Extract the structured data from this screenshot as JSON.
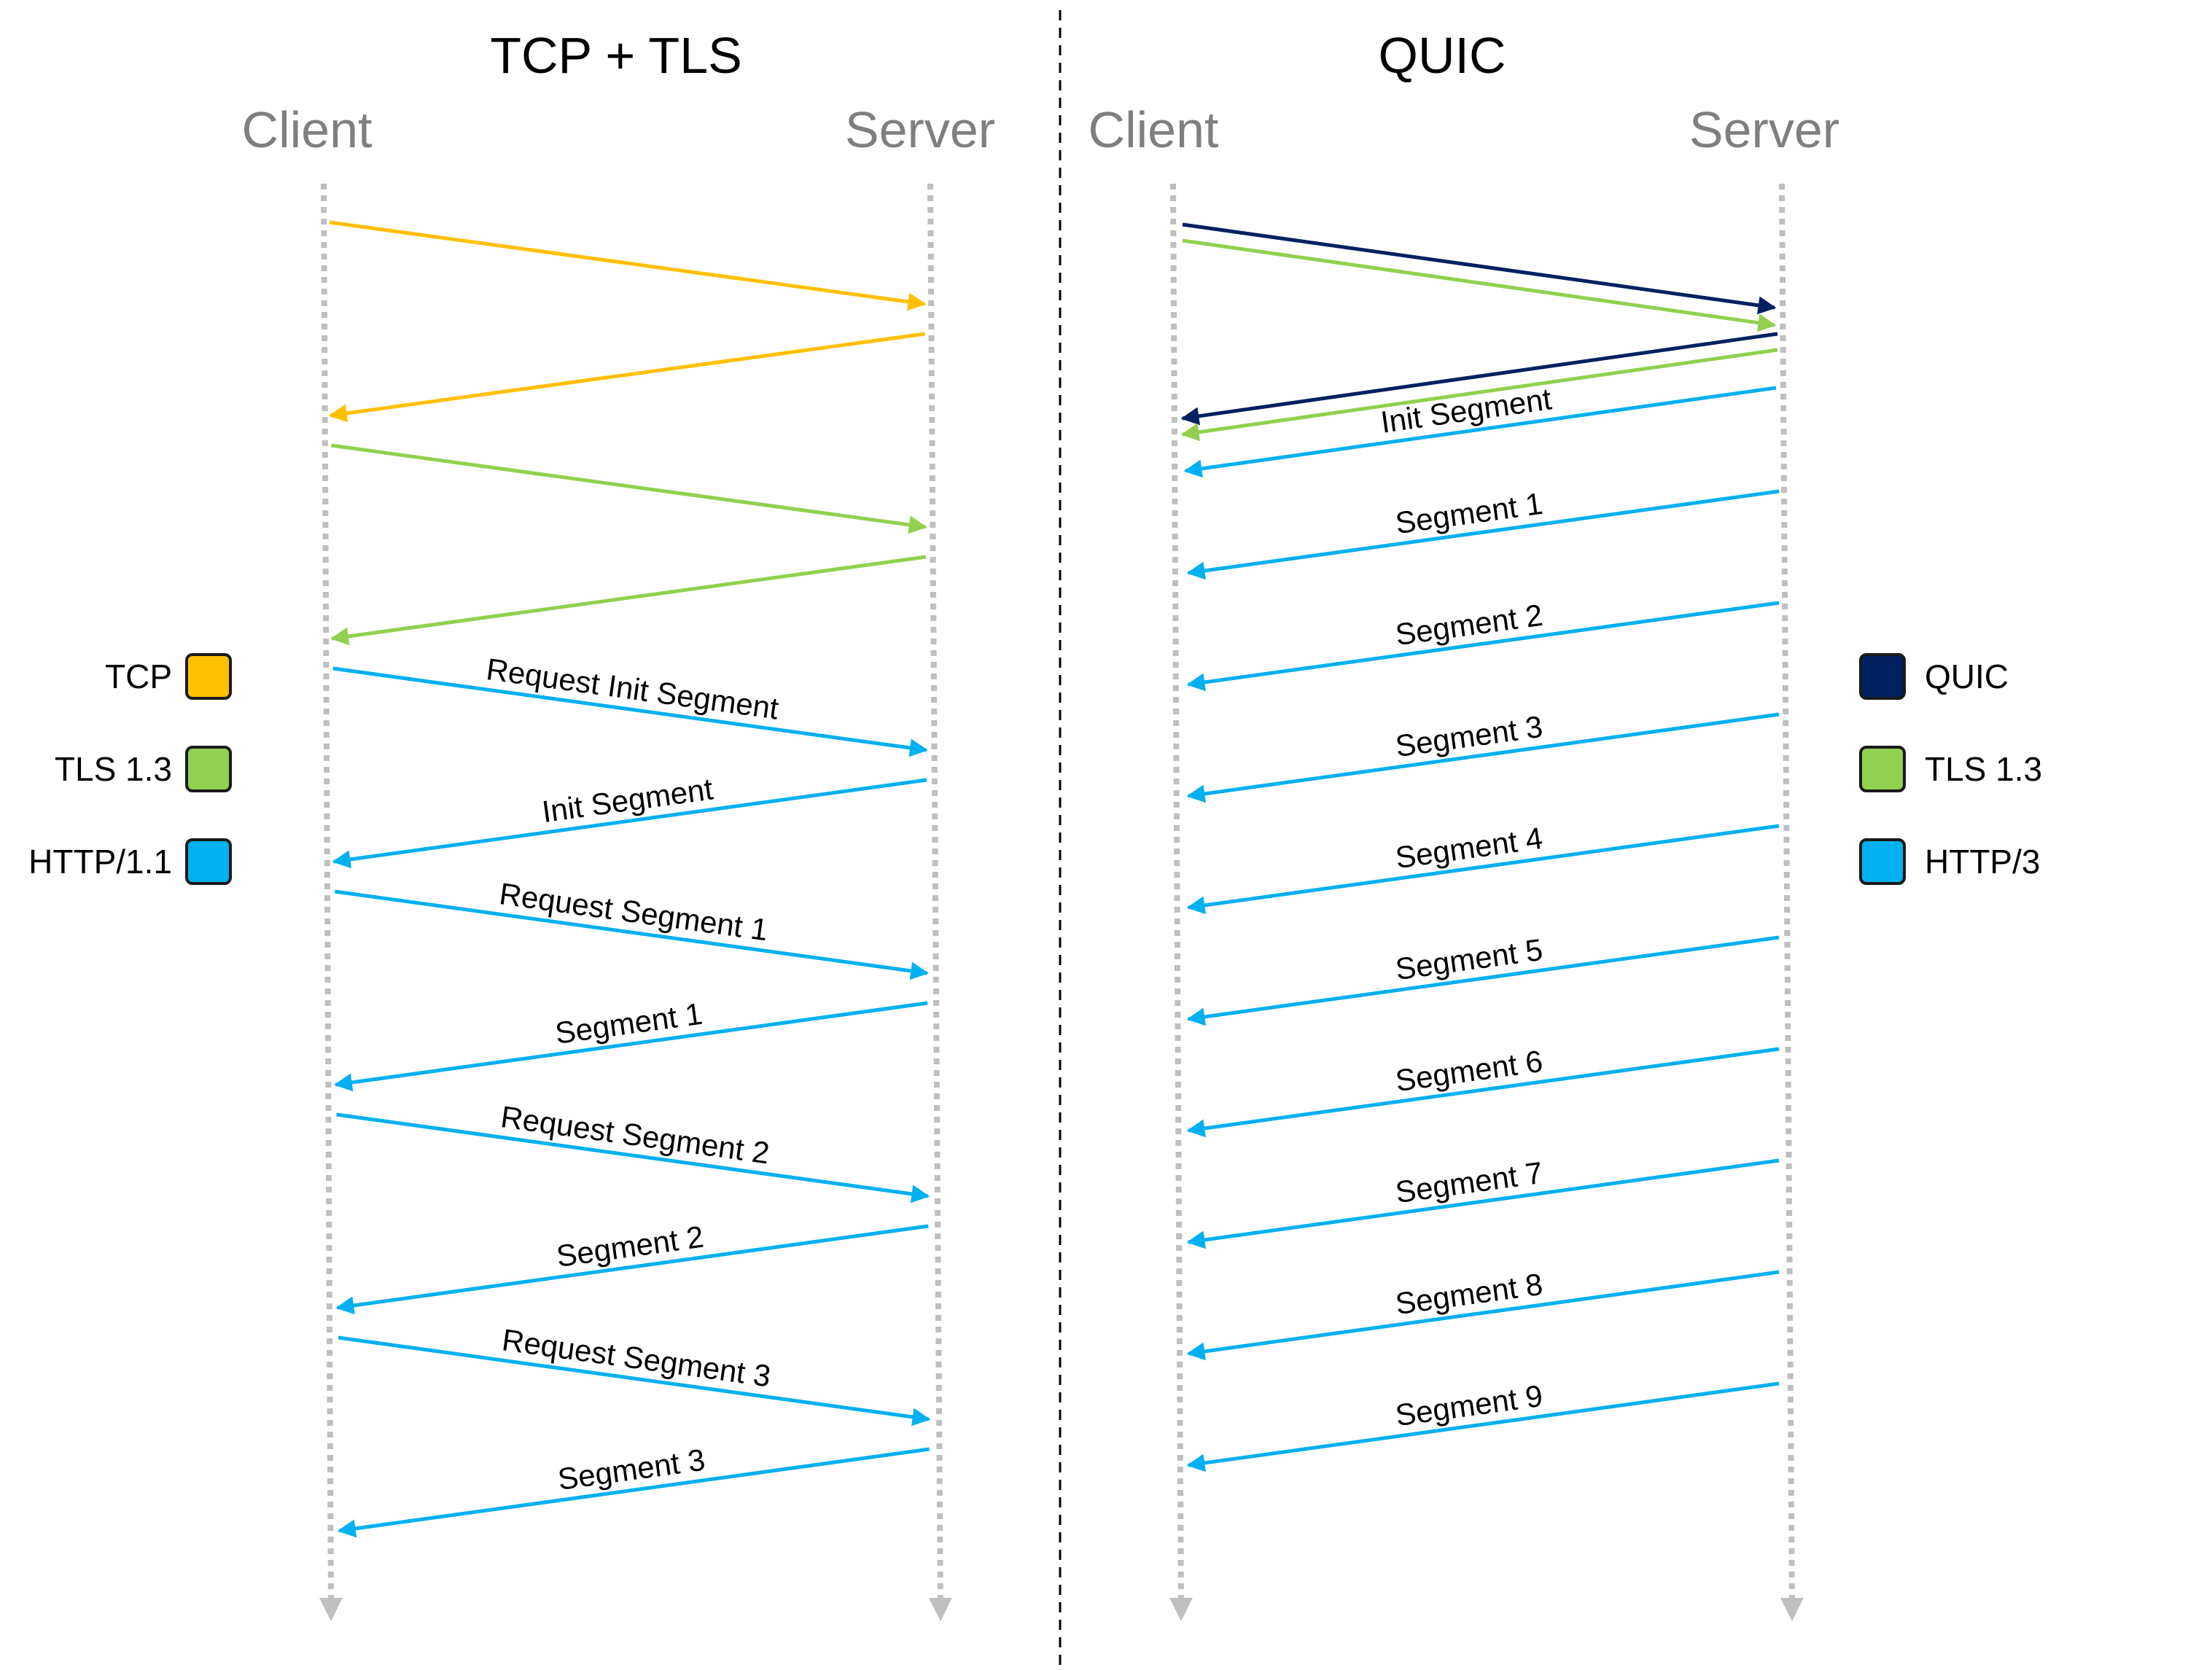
{
  "titles": {
    "left": "TCP + TLS",
    "right": "QUIC"
  },
  "lanes": {
    "client": "Client",
    "server": "Server"
  },
  "colors": {
    "tcp": "#FFC000",
    "tls": "#92D050",
    "http": "#00B0F0",
    "quic": "#002060",
    "lane": "#BFBFBF",
    "divider": "#000000",
    "title": "#000000",
    "lane_label": "#7F7F7F"
  },
  "legend_left": [
    {
      "label": "TCP",
      "color": "#FFC000"
    },
    {
      "label": "TLS 1.3",
      "color": "#92D050"
    },
    {
      "label": "HTTP/1.1",
      "color": "#00B0F0"
    }
  ],
  "legend_right": [
    {
      "label": "QUIC",
      "color": "#002060"
    },
    {
      "label": "TLS 1.3",
      "color": "#92D050"
    },
    {
      "label": "HTTP/3",
      "color": "#00B0F0"
    }
  ],
  "tcp_messages": [
    {
      "dir": "c2s",
      "kind": "tcp",
      "label": ""
    },
    {
      "dir": "s2c",
      "kind": "tcp",
      "label": ""
    },
    {
      "dir": "c2s",
      "kind": "tls",
      "label": ""
    },
    {
      "dir": "s2c",
      "kind": "tls",
      "label": ""
    },
    {
      "dir": "c2s",
      "kind": "http",
      "label": "Request Init Segment"
    },
    {
      "dir": "s2c",
      "kind": "http",
      "label": "Init Segment"
    },
    {
      "dir": "c2s",
      "kind": "http",
      "label": "Request Segment 1"
    },
    {
      "dir": "s2c",
      "kind": "http",
      "label": "Segment 1"
    },
    {
      "dir": "c2s",
      "kind": "http",
      "label": "Request Segment 2"
    },
    {
      "dir": "s2c",
      "kind": "http",
      "label": "Segment 2"
    },
    {
      "dir": "c2s",
      "kind": "http",
      "label": "Request Segment 3"
    },
    {
      "dir": "s2c",
      "kind": "http",
      "label": "Segment 3"
    }
  ],
  "quic_messages": [
    {
      "dir": "c2s",
      "kind": "quic",
      "label": ""
    },
    {
      "dir": "c2s",
      "kind": "tls",
      "label": ""
    },
    {
      "dir": "s2c",
      "kind": "quic",
      "label": ""
    },
    {
      "dir": "s2c",
      "kind": "tls",
      "label": ""
    },
    {
      "dir": "s2c",
      "kind": "http",
      "label": "Init Segment"
    },
    {
      "dir": "s2c",
      "kind": "http",
      "label": "Segment 1"
    },
    {
      "dir": "s2c",
      "kind": "http",
      "label": "Segment 2"
    },
    {
      "dir": "s2c",
      "kind": "http",
      "label": "Segment 3"
    },
    {
      "dir": "s2c",
      "kind": "http",
      "label": "Segment 4"
    },
    {
      "dir": "s2c",
      "kind": "http",
      "label": "Segment 5"
    },
    {
      "dir": "s2c",
      "kind": "http",
      "label": "Segment 6"
    },
    {
      "dir": "s2c",
      "kind": "http",
      "label": "Segment 7"
    },
    {
      "dir": "s2c",
      "kind": "http",
      "label": "Segment 8"
    },
    {
      "dir": "s2c",
      "kind": "http",
      "label": "Segment 9"
    }
  ]
}
